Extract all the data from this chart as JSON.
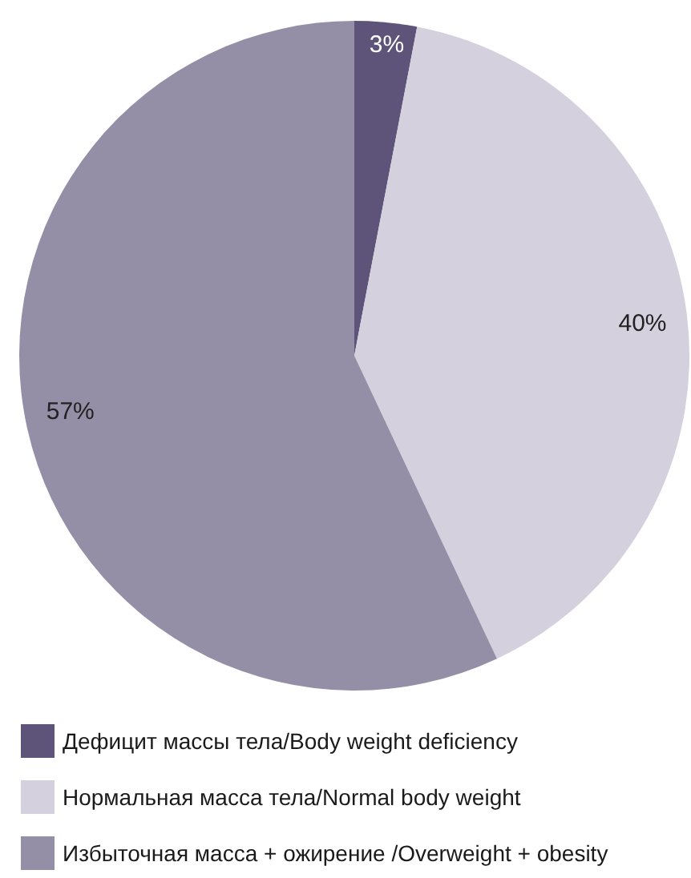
{
  "chart_data": {
    "type": "pie",
    "categories": [
      "Дефицит массы тела/Body weight deficiency",
      "Нормальная масса тела/Normal body weight",
      "Избыточная масса + ожирение /Overweight + obesity"
    ],
    "values": [
      3,
      40,
      57
    ],
    "colors": [
      "#5e5378",
      "#d4d0de",
      "#948fa6"
    ],
    "value_labels": [
      "3%",
      "40%",
      "57%"
    ],
    "legend": "bottom left"
  }
}
